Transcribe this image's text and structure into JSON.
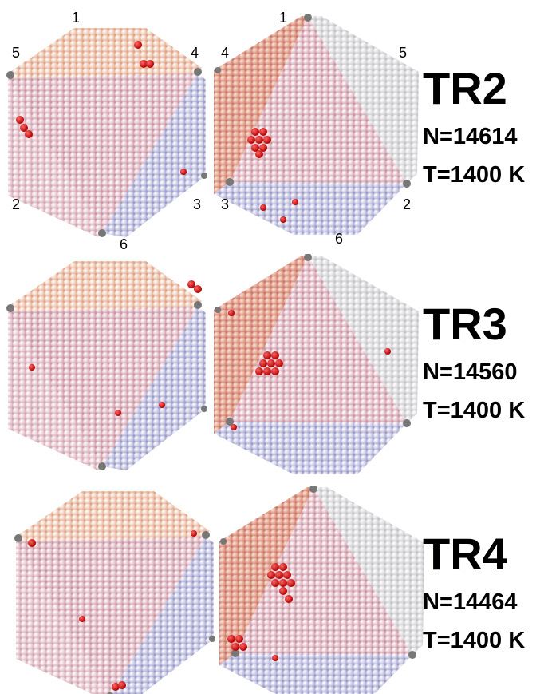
{
  "panels": [
    {
      "title": "TR2",
      "n": "N=14614",
      "t": "T=1400 K"
    },
    {
      "title": "TR3",
      "n": "N=14560",
      "t": "T=1400 K"
    },
    {
      "title": "TR4",
      "n": "N=14464",
      "t": "T=1400 K"
    }
  ],
  "vertex_labels": {
    "left": [
      "1",
      "5",
      "4",
      "2",
      "3",
      "6"
    ],
    "right": [
      "1",
      "4",
      "5",
      "3",
      "2",
      "6"
    ]
  }
}
